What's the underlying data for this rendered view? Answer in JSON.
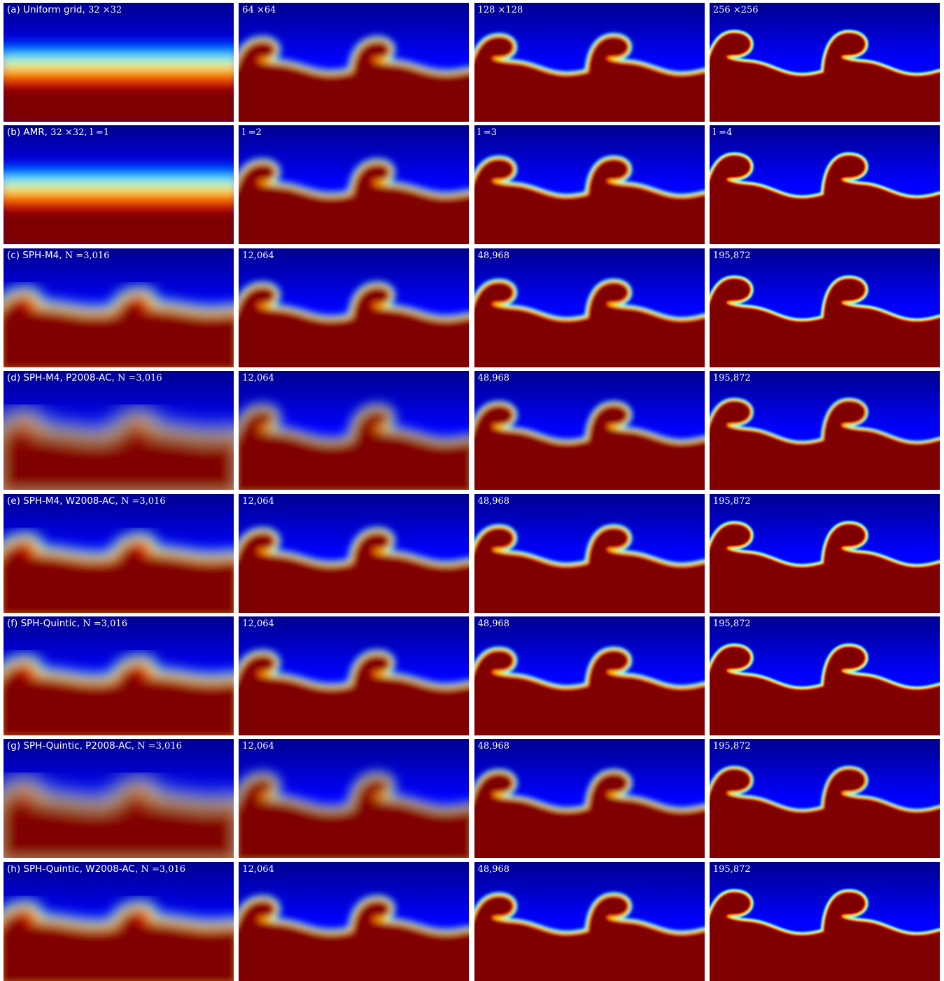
{
  "figure": {
    "colormap": [
      "#00008f",
      "#0000ff",
      "#0080ff",
      "#00ffff",
      "#80ff80",
      "#ffff00",
      "#ff8000",
      "#ff0000",
      "#7f0000"
    ],
    "rows": [
      {
        "id": "a",
        "method_label": "(a) Uniform grid,",
        "resolution_labels": [
          "32 ×32",
          "64 ×64",
          "128 ×128",
          "256 ×256"
        ]
      },
      {
        "id": "b",
        "method_label": "(b) AMR,",
        "resolution_labels": [
          "32 ×32, l =1",
          "l =2",
          "l =3",
          "l =4"
        ]
      },
      {
        "id": "c",
        "method_label": "(c) SPH-M4,",
        "resolution_labels": [
          "N =3,016",
          "12,064",
          "48,968",
          "195,872"
        ]
      },
      {
        "id": "d",
        "method_label": "(d) SPH-M4, P2008-AC,",
        "resolution_labels": [
          "N =3,016",
          "12,064",
          "48,968",
          "195,872"
        ]
      },
      {
        "id": "e",
        "method_label": "(e) SPH-M4, W2008-AC,",
        "resolution_labels": [
          "N =3,016",
          "12,064",
          "48,968",
          "195,872"
        ]
      },
      {
        "id": "f",
        "method_label": "(f) SPH-Quintic,",
        "resolution_labels": [
          "N =3,016",
          "12,064",
          "48,968",
          "195,872"
        ]
      },
      {
        "id": "g",
        "method_label": "(g) SPH-Quintic, P2008-AC,",
        "resolution_labels": [
          "N =3,016",
          "12,064",
          "48,968",
          "195,872"
        ]
      },
      {
        "id": "h",
        "method_label": "(h) SPH-Quintic, W2008-AC,",
        "resolution_labels": [
          "N =3,016",
          "12,064",
          "48,968",
          "195,872"
        ]
      }
    ]
  }
}
